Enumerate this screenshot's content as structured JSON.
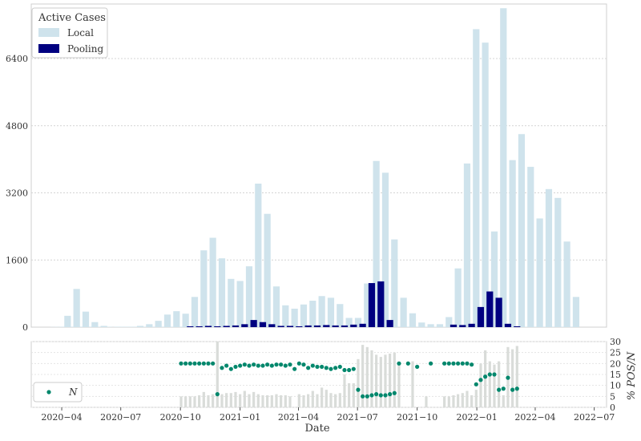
{
  "chart_data": {
    "type": "bar",
    "top": {
      "legend_title": "Active Cases",
      "legend_placement": "top-left",
      "y_ticks": [
        0,
        1600,
        3200,
        4800,
        6400
      ],
      "ylim": [
        0,
        7700
      ],
      "grid": true,
      "series": [
        {
          "name": "Local",
          "color": "#cfe3ec",
          "dates": [
            "2020-03-20",
            "2020-03-27",
            "2020-04-03",
            "2020-04-10",
            "2020-04-17",
            "2020-04-24",
            "2020-05-01",
            "2020-05-08",
            "2020-05-15",
            "2020-05-22",
            "2020-05-29",
            "2020-06-05",
            "2020-06-12",
            "2020-06-19",
            "2020-06-26",
            "2020-07-03",
            "2020-07-10",
            "2020-07-17",
            "2020-07-24",
            "2020-07-31",
            "2020-08-07",
            "2020-08-14",
            "2020-08-21",
            "2020-08-28",
            "2020-09-04",
            "2020-09-11",
            "2020-09-18",
            "2020-09-25",
            "2020-10-02",
            "2020-10-09",
            "2020-10-16",
            "2020-10-23",
            "2020-10-30",
            "2020-11-06",
            "2020-11-13",
            "2020-11-20",
            "2020-11-27",
            "2020-12-04",
            "2020-12-11",
            "2020-12-18",
            "2020-12-25",
            "2021-01-01",
            "2021-01-08",
            "2021-01-15",
            "2021-01-22",
            "2021-01-29",
            "2021-02-05",
            "2021-02-12",
            "2021-02-19",
            "2021-02-26",
            "2021-03-05",
            "2021-03-12",
            "2021-03-19",
            "2021-03-26",
            "2021-04-02",
            "2021-04-09",
            "2021-04-16",
            "2021-04-23",
            "2021-04-30",
            "2021-05-07",
            "2021-05-14",
            "2021-05-21",
            "2021-05-28",
            "2021-06-04",
            "2021-06-11",
            "2021-06-18",
            "2021-06-25",
            "2021-07-02",
            "2021-07-09",
            "2021-07-16",
            "2021-07-23",
            "2021-07-30",
            "2021-08-06",
            "2021-08-13",
            "2021-08-20",
            "2021-08-27",
            "2021-09-03",
            "2021-09-10",
            "2021-09-17",
            "2021-09-24",
            "2021-10-01",
            "2021-10-08",
            "2021-10-15",
            "2021-10-22",
            "2021-10-29",
            "2021-11-05",
            "2021-11-12",
            "2021-11-19",
            "2021-11-26",
            "2021-12-03",
            "2021-12-10",
            "2021-12-17",
            "2021-12-24",
            "2021-12-31",
            "2022-01-07",
            "2022-01-14",
            "2022-01-21",
            "2022-01-28",
            "2022-02-04",
            "2022-02-11",
            "2022-02-18",
            "2022-02-25",
            "2022-03-04",
            "2022-03-11",
            "2022-03-18",
            "2022-03-25",
            "2022-04-01",
            "2022-04-08",
            "2022-04-15",
            "2022-04-22",
            "2022-04-29",
            "2022-05-06",
            "2022-05-13",
            "2022-05-20",
            "2022-05-27",
            "2022-06-03",
            "2022-06-10"
          ],
          "values": [
            5,
            5,
            10,
            270,
            10,
            910,
            10,
            370,
            10,
            120,
            10,
            30,
            10,
            5,
            10,
            10,
            10,
            10,
            10,
            30,
            10,
            70,
            10,
            150,
            10,
            300,
            10,
            380,
            10,
            320,
            10,
            720,
            10,
            1830,
            10,
            2130,
            10,
            1640,
            10,
            1150,
            10,
            1100,
            10,
            1450,
            10,
            3420,
            10,
            2700,
            10,
            970,
            10,
            520,
            10,
            440,
            10,
            540,
            10,
            630,
            10,
            740,
            10,
            700,
            10,
            550,
            10,
            220,
            10,
            220,
            10,
            1040,
            10,
            3960,
            10,
            3680,
            10,
            2090,
            10,
            700,
            10,
            330,
            10,
            110,
            10,
            70,
            10,
            70,
            10,
            240,
            10,
            1400,
            10,
            3900,
            10,
            7100,
            10,
            6780,
            10,
            2280,
            10,
            7600,
            10,
            3980,
            10,
            4600,
            10,
            3820,
            10,
            2590,
            10,
            3290,
            10,
            3080,
            10,
            2040,
            10,
            720
          ]
        },
        {
          "name": "Pooling",
          "color": "#000080",
          "dates": [
            "2020-10-16",
            "2020-10-30",
            "2020-11-13",
            "2020-11-27",
            "2020-12-11",
            "2020-12-25",
            "2021-01-08",
            "2021-01-22",
            "2021-02-05",
            "2021-02-19",
            "2021-03-05",
            "2021-03-19",
            "2021-04-02",
            "2021-04-16",
            "2021-04-30",
            "2021-05-14",
            "2021-05-28",
            "2021-06-11",
            "2021-06-25",
            "2021-07-09",
            "2021-07-23",
            "2021-08-06",
            "2021-08-20",
            "2021-11-26",
            "2021-12-10",
            "2021-12-24",
            "2022-01-07",
            "2022-01-21",
            "2022-02-04",
            "2022-02-18",
            "2022-03-04"
          ],
          "values": [
            20,
            20,
            30,
            20,
            30,
            40,
            70,
            170,
            120,
            70,
            30,
            30,
            20,
            40,
            40,
            50,
            40,
            40,
            60,
            80,
            1050,
            1090,
            170,
            60,
            50,
            80,
            480,
            850,
            700,
            80,
            20
          ]
        }
      ]
    },
    "bottom": {
      "y_label": "% POS/N",
      "y_ticks": [
        0,
        5,
        10,
        15,
        20,
        25,
        30
      ],
      "ylim": [
        0,
        30
      ],
      "legend_label": "N",
      "legend_placement": "bottom-left",
      "bars_color": "#d9dcd9",
      "points_color": "#00876c",
      "bars": {
        "dates": [
          "2020-10-02",
          "2020-10-09",
          "2020-10-16",
          "2020-10-23",
          "2020-10-30",
          "2020-11-06",
          "2020-11-13",
          "2020-11-20",
          "2020-11-27",
          "2020-12-04",
          "2020-12-11",
          "2020-12-18",
          "2020-12-25",
          "2021-01-01",
          "2021-01-08",
          "2021-01-15",
          "2021-01-22",
          "2021-01-29",
          "2021-02-05",
          "2021-02-12",
          "2021-02-19",
          "2021-02-26",
          "2021-03-05",
          "2021-03-12",
          "2021-03-19",
          "2021-04-02",
          "2021-04-09",
          "2021-04-16",
          "2021-04-23",
          "2021-04-30",
          "2021-05-07",
          "2021-05-14",
          "2021-05-21",
          "2021-05-28",
          "2021-06-04",
          "2021-06-11",
          "2021-06-18",
          "2021-06-25",
          "2021-07-02",
          "2021-07-09",
          "2021-07-16",
          "2021-07-23",
          "2021-07-30",
          "2021-08-06",
          "2021-08-13",
          "2021-08-20",
          "2021-08-27",
          "2021-09-03",
          "2021-09-24",
          "2021-10-15",
          "2021-11-12",
          "2021-11-19",
          "2021-11-26",
          "2021-12-03",
          "2021-12-10",
          "2021-12-17",
          "2021-12-24",
          "2021-12-31",
          "2022-01-07",
          "2022-01-14",
          "2022-01-21",
          "2022-01-28",
          "2022-02-04",
          "2022-02-11",
          "2022-02-18",
          "2022-02-25",
          "2022-03-04"
        ],
        "values": [
          5,
          5,
          5,
          5,
          5.5,
          7,
          5.5,
          6,
          30,
          6,
          6.5,
          6.5,
          7,
          6,
          7.5,
          6,
          7,
          6,
          5.5,
          5.5,
          5.5,
          6,
          5.5,
          5.5,
          5,
          6,
          5.5,
          6,
          7.5,
          6,
          9,
          8,
          6.5,
          6,
          6.5,
          15,
          11,
          11,
          22,
          28.5,
          27.5,
          26,
          24,
          23,
          24,
          24.5,
          25,
          20,
          21,
          5,
          5,
          5,
          5.5,
          6,
          6.5,
          7.5,
          5.5,
          8,
          20,
          26,
          21,
          19.5,
          21,
          5.5,
          27.5,
          26.5,
          28
        ]
      },
      "points": {
        "dates": [
          "2020-10-02",
          "2020-10-09",
          "2020-10-16",
          "2020-10-23",
          "2020-10-30",
          "2020-11-06",
          "2020-11-13",
          "2020-11-20",
          "2020-11-27",
          "2020-12-04",
          "2020-12-11",
          "2020-12-18",
          "2020-12-25",
          "2021-01-01",
          "2021-01-08",
          "2021-01-15",
          "2021-01-22",
          "2021-01-29",
          "2021-02-05",
          "2021-02-12",
          "2021-02-19",
          "2021-02-26",
          "2021-03-05",
          "2021-03-12",
          "2021-03-19",
          "2021-03-26",
          "2021-04-02",
          "2021-04-09",
          "2021-04-16",
          "2021-04-23",
          "2021-04-30",
          "2021-05-07",
          "2021-05-14",
          "2021-05-21",
          "2021-05-28",
          "2021-06-04",
          "2021-06-11",
          "2021-06-18",
          "2021-06-25",
          "2021-07-02",
          "2021-07-09",
          "2021-07-16",
          "2021-07-23",
          "2021-07-30",
          "2021-08-06",
          "2021-08-13",
          "2021-08-20",
          "2021-08-27",
          "2021-09-03",
          "2021-09-17",
          "2021-10-01",
          "2021-10-22",
          "2021-11-12",
          "2021-11-19",
          "2021-11-26",
          "2021-12-03",
          "2021-12-10",
          "2021-12-17",
          "2021-12-24",
          "2021-12-31",
          "2022-01-07",
          "2022-01-14",
          "2022-01-21",
          "2022-01-28",
          "2022-02-04",
          "2022-02-11",
          "2022-02-18",
          "2022-02-25",
          "2022-03-04"
        ],
        "values": [
          20,
          20,
          20,
          20,
          20,
          20,
          20,
          20,
          6,
          18,
          19,
          17.5,
          18.5,
          19,
          19.5,
          19,
          19.5,
          19,
          19,
          19.5,
          19,
          19.5,
          19.5,
          19,
          19.5,
          17.5,
          20,
          19.5,
          18,
          19,
          18.5,
          18.5,
          18,
          17.5,
          18,
          18.5,
          17,
          17,
          17.5,
          8,
          5,
          5,
          5.5,
          6,
          5.5,
          5.5,
          6,
          6.5,
          20,
          20,
          18.5,
          20,
          20,
          20,
          20,
          20,
          20,
          20,
          19.5,
          10.5,
          12.5,
          14,
          15,
          15,
          8,
          8.5,
          13.5,
          8,
          8.5
        ]
      }
    },
    "x": {
      "title": "Date",
      "ticks": [
        "2020-04-01",
        "2020-07-01",
        "2020-10-01",
        "2021-01-01",
        "2021-04-01",
        "2021-07-01",
        "2021-10-01",
        "2022-01-01",
        "2022-04-01",
        "2022-07-01"
      ],
      "tick_labels": [
        "2020−04",
        "2020−07",
        "2020−10",
        "2021−01",
        "2021−04",
        "2021−07",
        "2021−10",
        "2022−01",
        "2022−04",
        "2022−07"
      ],
      "range": [
        "2020-02-14",
        "2022-07-20"
      ]
    }
  }
}
